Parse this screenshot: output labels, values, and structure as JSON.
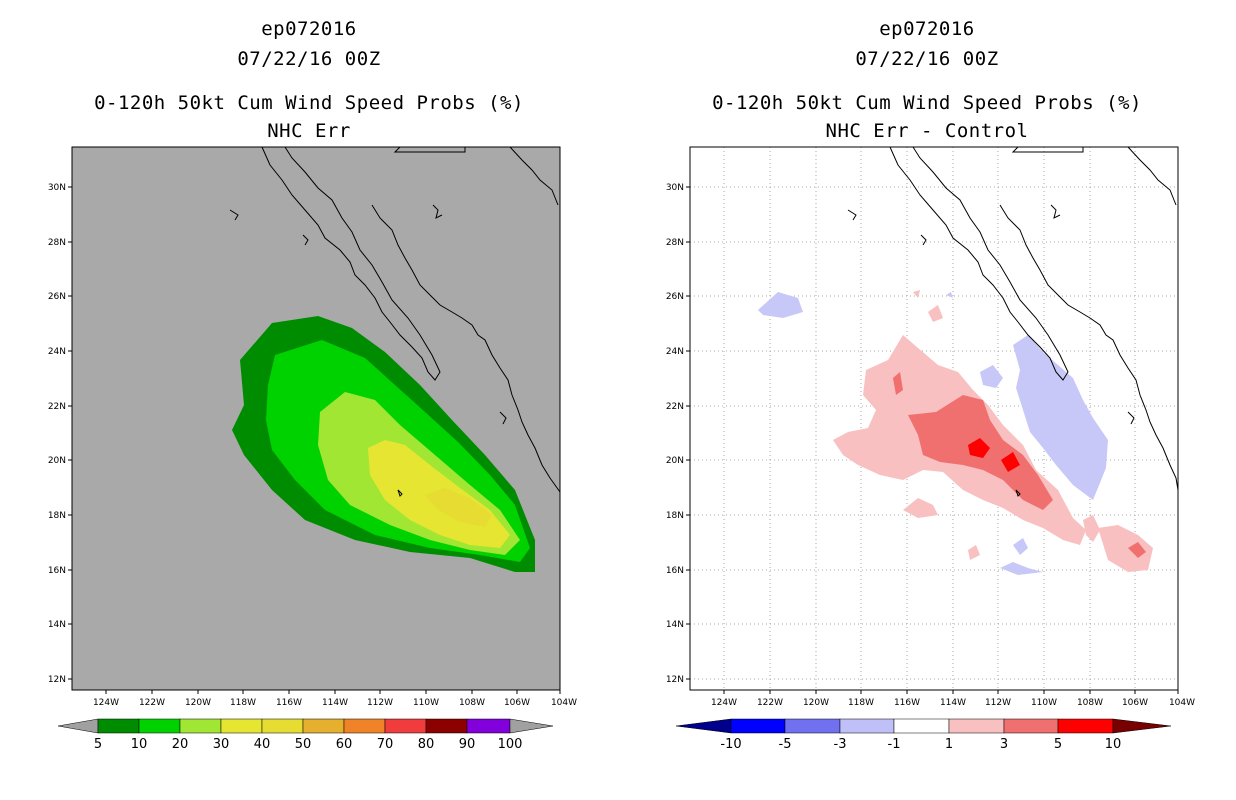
{
  "panels": [
    {
      "id": "left",
      "title": {
        "line1": "ep072016",
        "line2": "07/22/16 00Z",
        "line3": "0-120h 50kt Cum Wind Speed Probs (%)",
        "line4": "NHC Err"
      },
      "background_color": "#a9a9a9",
      "colorbar": {
        "labels": [
          "5",
          "10",
          "20",
          "30",
          "40",
          "50",
          "60",
          "70",
          "80",
          "90",
          "100"
        ],
        "colors": [
          "#a0a0a0",
          "#008c00",
          "#00d200",
          "#a0e632",
          "#e6e632",
          "#e6dc32",
          "#e6af2d",
          "#f08228",
          "#f03c3c",
          "#8c0000",
          "#8200dc",
          "#a0a0a0"
        ]
      }
    },
    {
      "id": "right",
      "title": {
        "line1": "ep072016",
        "line2": "07/22/16 00Z",
        "line3": "0-120h 50kt Cum Wind Speed Probs (%)",
        "line4": "NHC Err - Control"
      },
      "background_color": "#ffffff",
      "colorbar": {
        "labels": [
          "-10",
          "-5",
          "-3",
          "-1",
          "1",
          "3",
          "5",
          "10"
        ],
        "colors": [
          "#00008c",
          "#0000ff",
          "#7070f0",
          "#c0c0f8",
          "#ffffff",
          "#f8c0c0",
          "#f07070",
          "#ff0000",
          "#780000"
        ]
      }
    }
  ],
  "map": {
    "lat_labels": [
      "30N",
      "28N",
      "26N",
      "24N",
      "22N",
      "20N",
      "18N",
      "16N",
      "14N",
      "12N"
    ],
    "lon_labels": [
      "124W",
      "122W",
      "120W",
      "118W",
      "116W",
      "114W",
      "112W",
      "110W",
      "108W",
      "106W",
      "104W"
    ]
  }
}
